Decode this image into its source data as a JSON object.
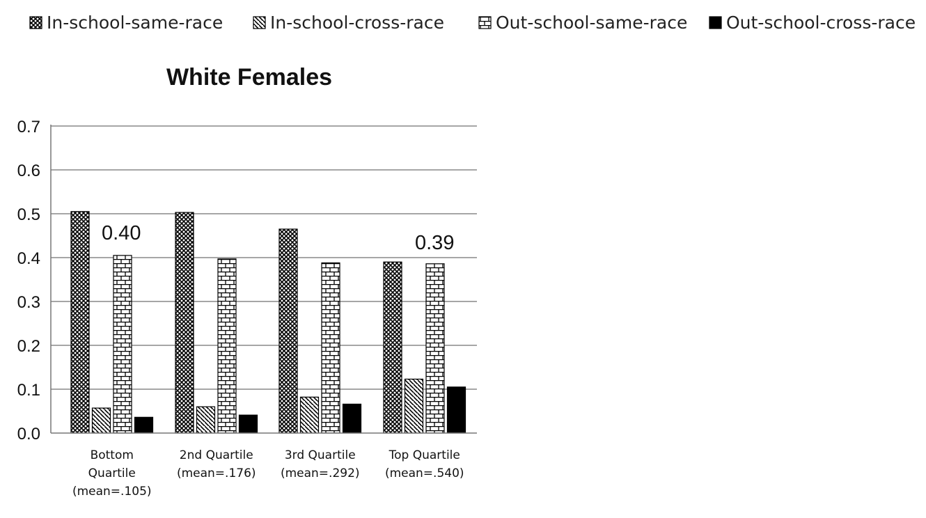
{
  "chart_data": {
    "type": "bar",
    "title": "White Females",
    "categories": [
      [
        "Bottom",
        "Quartile",
        "(mean=.105)"
      ],
      [
        "2nd Quartile",
        "(mean=.176)"
      ],
      [
        "3rd Quartile",
        "(mean=.292)"
      ],
      [
        "Top Quartile",
        "(mean=.540)"
      ]
    ],
    "series": [
      {
        "name": "In-school-same-race",
        "pattern": "crosshatch",
        "values": [
          0.505,
          0.503,
          0.465,
          0.39
        ]
      },
      {
        "name": "In-school-cross-race",
        "pattern": "diagonal",
        "values": [
          0.057,
          0.06,
          0.082,
          0.123
        ]
      },
      {
        "name": "Out-school-same-race",
        "pattern": "brick",
        "values": [
          0.405,
          0.397,
          0.388,
          0.386
        ]
      },
      {
        "name": "Out-school-cross-race",
        "pattern": "solid",
        "values": [
          0.036,
          0.041,
          0.066,
          0.105
        ]
      }
    ],
    "ylim": [
      0,
      0.7
    ],
    "yticks": [
      "0.0",
      "0.1",
      "0.2",
      "0.3",
      "0.4",
      "0.5",
      "0.6",
      "0.7"
    ],
    "grid": true,
    "legend_position": "top",
    "annotations": [
      {
        "text": "0.40",
        "category_index": 0
      },
      {
        "text": "0.39",
        "category_index": 3
      }
    ],
    "colors": {
      "bar_fill": "#000000",
      "background": "#ffffff",
      "grid": "#888888"
    }
  }
}
